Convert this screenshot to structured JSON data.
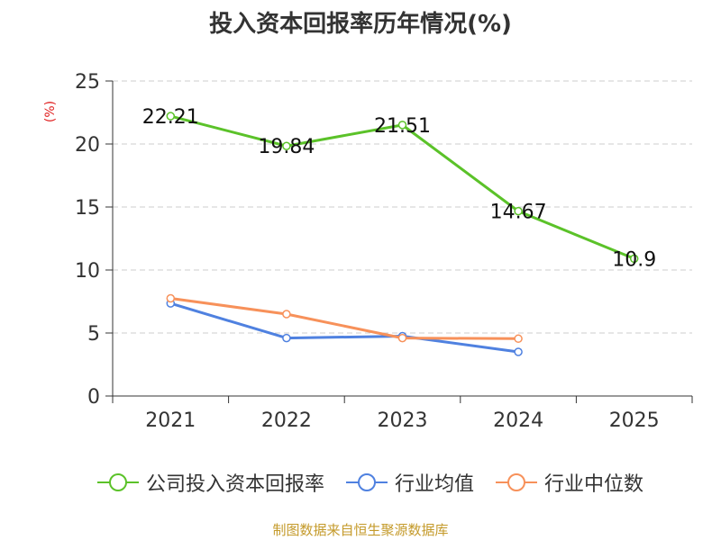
{
  "title": "投入资本回报率历年情况(%)",
  "source": "制图数据来自恒生聚源数据库",
  "chart_data": {
    "type": "line",
    "title": "投入资本回报率历年情况(%)",
    "ylabel": "(%)",
    "xlabel": "",
    "categories": [
      "2021",
      "2022",
      "2023",
      "2024",
      "2025"
    ],
    "ylim": [
      0,
      25
    ],
    "yticks": [
      0,
      5,
      10,
      15,
      20,
      25
    ],
    "grid": true,
    "legend_position": "bottom",
    "series": [
      {
        "name": "公司投入资本回报率",
        "color": "#5bc229",
        "values": [
          22.21,
          19.84,
          21.51,
          14.67,
          10.9
        ],
        "labels": [
          "22.21",
          "19.84",
          "21.51",
          "14.67",
          "10.9"
        ]
      },
      {
        "name": "行业均值",
        "color": "#4f81e0",
        "values": [
          7.35,
          4.6,
          4.75,
          3.5,
          null
        ]
      },
      {
        "name": "行业中位数",
        "color": "#f7915a",
        "values": [
          7.75,
          6.5,
          4.6,
          4.55,
          null
        ]
      }
    ]
  }
}
